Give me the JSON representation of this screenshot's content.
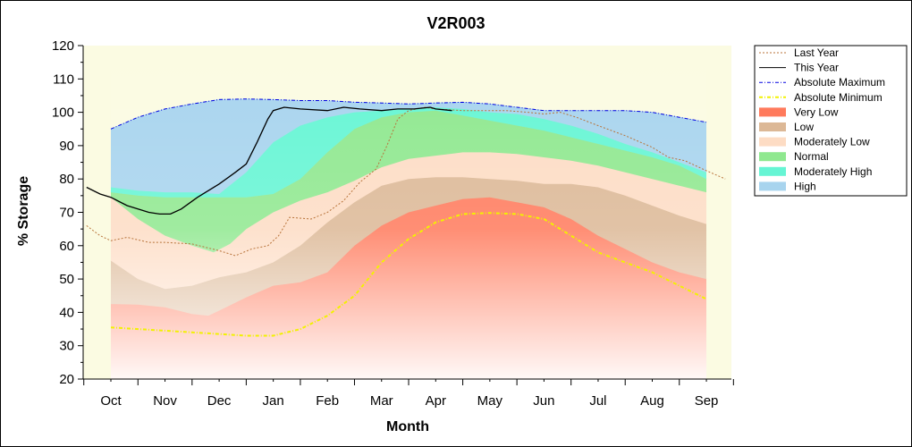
{
  "chart_data": {
    "type": "area",
    "title": "V2R003",
    "xlabel": "Month",
    "ylabel": "% Storage",
    "ylim": [
      20,
      120
    ],
    "yticks": [
      20,
      30,
      40,
      50,
      60,
      70,
      80,
      90,
      100,
      110,
      120
    ],
    "categories": [
      "Oct",
      "Nov",
      "Dec",
      "Jan",
      "Feb",
      "Mar",
      "Apr",
      "May",
      "Jun",
      "Jul",
      "Aug",
      "Sep"
    ],
    "grid": false,
    "legend_position": "right",
    "bands": [
      {
        "name": "Very Low",
        "color": "#ff7a5c",
        "lower": [
          [
            0.0,
            20
          ],
          [
            11.0,
            20
          ]
        ],
        "upper": [
          [
            0.0,
            42.5
          ],
          [
            0.5,
            42.3
          ],
          [
            1.0,
            41.5
          ],
          [
            1.5,
            39.5
          ],
          [
            1.8,
            39.0
          ],
          [
            2.0,
            40.5
          ],
          [
            2.5,
            44.5
          ],
          [
            3.0,
            48.0
          ],
          [
            3.5,
            49.0
          ],
          [
            4.0,
            52.0
          ],
          [
            4.5,
            60.0
          ],
          [
            5.0,
            66.0
          ],
          [
            5.5,
            70.0
          ],
          [
            6.0,
            72.0
          ],
          [
            6.5,
            74.0
          ],
          [
            7.0,
            74.5
          ],
          [
            7.5,
            73.0
          ],
          [
            8.0,
            71.5
          ],
          [
            8.5,
            68.0
          ],
          [
            9.0,
            63.0
          ],
          [
            9.5,
            59.0
          ],
          [
            10.0,
            55.0
          ],
          [
            10.5,
            52.0
          ],
          [
            11.0,
            50.0
          ]
        ]
      },
      {
        "name": "Low",
        "color": "#dcb896",
        "upper": [
          [
            0.0,
            55.5
          ],
          [
            0.5,
            50.0
          ],
          [
            1.0,
            47.0
          ],
          [
            1.5,
            48.0
          ],
          [
            2.0,
            50.5
          ],
          [
            2.5,
            52.0
          ],
          [
            3.0,
            55.0
          ],
          [
            3.5,
            60.0
          ],
          [
            4.0,
            67.0
          ],
          [
            4.5,
            73.0
          ],
          [
            5.0,
            78.0
          ],
          [
            5.5,
            80.0
          ],
          [
            6.0,
            80.5
          ],
          [
            6.5,
            80.5
          ],
          [
            7.0,
            80.0
          ],
          [
            7.5,
            79.5
          ],
          [
            8.0,
            78.5
          ],
          [
            8.5,
            78.5
          ],
          [
            9.0,
            77.5
          ],
          [
            9.5,
            75.0
          ],
          [
            10.0,
            72.0
          ],
          [
            10.5,
            69.0
          ],
          [
            11.0,
            66.5
          ]
        ]
      },
      {
        "name": "Moderately Low",
        "color": "#fddcc4",
        "upper": [
          [
            0.0,
            74.5
          ],
          [
            0.5,
            68.0
          ],
          [
            1.0,
            63.0
          ],
          [
            1.5,
            60.0
          ],
          [
            1.9,
            58.0
          ],
          [
            2.2,
            60.5
          ],
          [
            2.5,
            65.0
          ],
          [
            3.0,
            70.0
          ],
          [
            3.5,
            73.5
          ],
          [
            4.0,
            76.0
          ],
          [
            4.5,
            79.5
          ],
          [
            5.0,
            83.5
          ],
          [
            5.5,
            86.0
          ],
          [
            6.0,
            87.0
          ],
          [
            6.5,
            88.0
          ],
          [
            7.0,
            88.0
          ],
          [
            7.5,
            87.5
          ],
          [
            8.0,
            86.5
          ],
          [
            8.5,
            85.5
          ],
          [
            9.0,
            84.0
          ],
          [
            9.5,
            82.0
          ],
          [
            10.0,
            80.0
          ],
          [
            10.5,
            78.0
          ],
          [
            11.0,
            76.0
          ]
        ]
      },
      {
        "name": "Normal",
        "color": "#8fe88f",
        "upper": [
          [
            0.0,
            76.0
          ],
          [
            0.5,
            75.0
          ],
          [
            1.0,
            74.5
          ],
          [
            1.5,
            74.5
          ],
          [
            2.0,
            74.5
          ],
          [
            2.5,
            74.5
          ],
          [
            3.0,
            75.5
          ],
          [
            3.5,
            80.0
          ],
          [
            4.0,
            88.0
          ],
          [
            4.5,
            95.0
          ],
          [
            5.0,
            98.5
          ],
          [
            5.5,
            100.0
          ],
          [
            6.0,
            100.5
          ],
          [
            6.5,
            99.0
          ],
          [
            7.0,
            97.5
          ],
          [
            7.5,
            96.0
          ],
          [
            8.0,
            94.5
          ],
          [
            8.5,
            92.5
          ],
          [
            9.0,
            90.5
          ],
          [
            9.5,
            88.5
          ],
          [
            10.0,
            86.5
          ],
          [
            10.5,
            84.0
          ],
          [
            11.0,
            80.0
          ]
        ]
      },
      {
        "name": "Moderately High",
        "color": "#66f5d4",
        "upper": [
          [
            0.0,
            77.5
          ],
          [
            0.5,
            76.5
          ],
          [
            1.0,
            76.0
          ],
          [
            1.5,
            76.0
          ],
          [
            2.0,
            75.5
          ],
          [
            2.5,
            82.0
          ],
          [
            3.0,
            91.0
          ],
          [
            3.5,
            96.0
          ],
          [
            4.0,
            98.5
          ],
          [
            4.5,
            100.0
          ],
          [
            5.0,
            100.5
          ],
          [
            5.5,
            101.0
          ],
          [
            6.0,
            101.5
          ],
          [
            6.5,
            101.0
          ],
          [
            7.0,
            100.0
          ],
          [
            7.5,
            99.5
          ],
          [
            8.0,
            98.0
          ],
          [
            8.5,
            96.0
          ],
          [
            9.0,
            93.5
          ],
          [
            9.5,
            90.5
          ],
          [
            10.0,
            88.0
          ],
          [
            10.5,
            85.0
          ],
          [
            11.0,
            82.0
          ]
        ]
      },
      {
        "name": "High",
        "color": "#a8d4ee",
        "upper": [
          [
            0.0,
            95.0
          ],
          [
            0.5,
            98.5
          ],
          [
            1.0,
            101.0
          ],
          [
            1.5,
            102.5
          ],
          [
            2.0,
            103.8
          ],
          [
            2.5,
            104.0
          ],
          [
            3.0,
            103.8
          ],
          [
            3.5,
            103.5
          ],
          [
            4.0,
            103.5
          ],
          [
            4.5,
            103.0
          ],
          [
            5.0,
            102.8
          ],
          [
            5.5,
            102.5
          ],
          [
            6.0,
            102.8
          ],
          [
            6.5,
            103.0
          ],
          [
            7.0,
            102.5
          ],
          [
            7.5,
            101.5
          ],
          [
            8.0,
            100.5
          ],
          [
            8.5,
            100.5
          ],
          [
            9.0,
            100.5
          ],
          [
            9.5,
            100.5
          ],
          [
            10.0,
            100.0
          ],
          [
            10.5,
            98.5
          ],
          [
            11.0,
            97.0
          ]
        ]
      }
    ],
    "series": [
      {
        "name": "Last Year",
        "style": "dotted",
        "color": "#b8733a",
        "points": [
          [
            -0.45,
            66.0
          ],
          [
            -0.2,
            63.0
          ],
          [
            0.0,
            61.5
          ],
          [
            0.3,
            62.5
          ],
          [
            0.7,
            61.0
          ],
          [
            1.0,
            61.0
          ],
          [
            1.5,
            60.5
          ],
          [
            2.0,
            58.5
          ],
          [
            2.3,
            57.0
          ],
          [
            2.6,
            59.0
          ],
          [
            2.9,
            60.0
          ],
          [
            3.1,
            63.0
          ],
          [
            3.3,
            68.5
          ],
          [
            3.7,
            68.0
          ],
          [
            4.0,
            70.0
          ],
          [
            4.3,
            73.5
          ],
          [
            4.6,
            79.0
          ],
          [
            4.9,
            83.0
          ],
          [
            5.1,
            90.0
          ],
          [
            5.3,
            98.0
          ],
          [
            5.5,
            100.5
          ],
          [
            5.8,
            101.5
          ],
          [
            6.0,
            101.0
          ],
          [
            6.5,
            100.5
          ],
          [
            7.0,
            100.5
          ],
          [
            7.3,
            100.5
          ],
          [
            7.7,
            100.0
          ],
          [
            8.0,
            99.5
          ],
          [
            8.3,
            100.0
          ],
          [
            8.6,
            98.5
          ],
          [
            9.0,
            96.0
          ],
          [
            9.5,
            93.0
          ],
          [
            10.0,
            89.5
          ],
          [
            10.3,
            86.5
          ],
          [
            10.6,
            85.5
          ],
          [
            11.0,
            82.5
          ],
          [
            11.35,
            80.0
          ]
        ]
      },
      {
        "name": "This Year",
        "style": "solid",
        "color": "#000000",
        "points": [
          [
            -0.45,
            77.5
          ],
          [
            -0.2,
            75.5
          ],
          [
            0.0,
            74.5
          ],
          [
            0.3,
            72.0
          ],
          [
            0.7,
            70.0
          ],
          [
            0.9,
            69.5
          ],
          [
            1.1,
            69.5
          ],
          [
            1.3,
            71.0
          ],
          [
            1.6,
            74.5
          ],
          [
            2.0,
            78.5
          ],
          [
            2.3,
            82.0
          ],
          [
            2.5,
            84.5
          ],
          [
            2.7,
            91.0
          ],
          [
            2.9,
            98.0
          ],
          [
            3.0,
            100.5
          ],
          [
            3.2,
            101.5
          ],
          [
            3.5,
            101.0
          ],
          [
            4.0,
            100.5
          ],
          [
            4.3,
            101.5
          ],
          [
            4.6,
            101.0
          ],
          [
            5.0,
            100.5
          ],
          [
            5.3,
            101.0
          ],
          [
            5.6,
            101.0
          ],
          [
            5.9,
            101.5
          ],
          [
            6.0,
            101.0
          ],
          [
            6.3,
            100.5
          ]
        ]
      },
      {
        "name": "Absolute Maximum",
        "style": "dashdot",
        "color": "#0000e0",
        "points": [
          [
            0.0,
            95.0
          ],
          [
            0.5,
            98.5
          ],
          [
            1.0,
            101.0
          ],
          [
            1.5,
            102.5
          ],
          [
            2.0,
            103.8
          ],
          [
            2.5,
            104.0
          ],
          [
            3.0,
            103.8
          ],
          [
            3.5,
            103.5
          ],
          [
            4.0,
            103.5
          ],
          [
            4.5,
            103.0
          ],
          [
            5.0,
            102.8
          ],
          [
            5.5,
            102.5
          ],
          [
            6.0,
            102.8
          ],
          [
            6.5,
            103.0
          ],
          [
            7.0,
            102.5
          ],
          [
            7.5,
            101.5
          ],
          [
            8.0,
            100.5
          ],
          [
            8.5,
            100.5
          ],
          [
            9.0,
            100.5
          ],
          [
            9.5,
            100.5
          ],
          [
            10.0,
            100.0
          ],
          [
            10.5,
            98.5
          ],
          [
            11.0,
            97.0
          ]
        ]
      },
      {
        "name": "Absolute Minimum",
        "style": "dashdot",
        "color": "#f2f200",
        "points": [
          [
            0.0,
            35.5
          ],
          [
            0.5,
            35.0
          ],
          [
            1.0,
            34.5
          ],
          [
            1.5,
            34.0
          ],
          [
            2.0,
            33.5
          ],
          [
            2.5,
            33.0
          ],
          [
            3.0,
            33.0
          ],
          [
            3.5,
            35.0
          ],
          [
            4.0,
            39.0
          ],
          [
            4.5,
            45.0
          ],
          [
            5.0,
            55.0
          ],
          [
            5.5,
            62.0
          ],
          [
            6.0,
            67.0
          ],
          [
            6.5,
            69.5
          ],
          [
            7.0,
            69.8
          ],
          [
            7.5,
            69.5
          ],
          [
            8.0,
            68.0
          ],
          [
            8.5,
            63.0
          ],
          [
            9.0,
            58.0
          ],
          [
            9.5,
            55.0
          ],
          [
            10.0,
            52.0
          ],
          [
            10.5,
            48.0
          ],
          [
            11.0,
            44.0
          ]
        ]
      }
    ],
    "legend": [
      {
        "label": "Last Year",
        "kind": "line",
        "color": "#b8733a",
        "style": "dotted"
      },
      {
        "label": "This Year",
        "kind": "line",
        "color": "#000000",
        "style": "solid"
      },
      {
        "label": "Absolute Maximum",
        "kind": "line",
        "color": "#0000e0",
        "style": "dashdot"
      },
      {
        "label": "Absolute Minimum",
        "kind": "line",
        "color": "#f2f200",
        "style": "dashdot"
      },
      {
        "label": "Very Low",
        "kind": "band",
        "color": "#ff7a5c"
      },
      {
        "label": "Low",
        "kind": "band",
        "color": "#dcb896"
      },
      {
        "label": "Moderately Low",
        "kind": "band",
        "color": "#fddcc4"
      },
      {
        "label": "Normal",
        "kind": "band",
        "color": "#8fe88f"
      },
      {
        "label": "Moderately High",
        "kind": "band",
        "color": "#66f5d4"
      },
      {
        "label": "High",
        "kind": "band",
        "color": "#a8d4ee"
      }
    ]
  }
}
